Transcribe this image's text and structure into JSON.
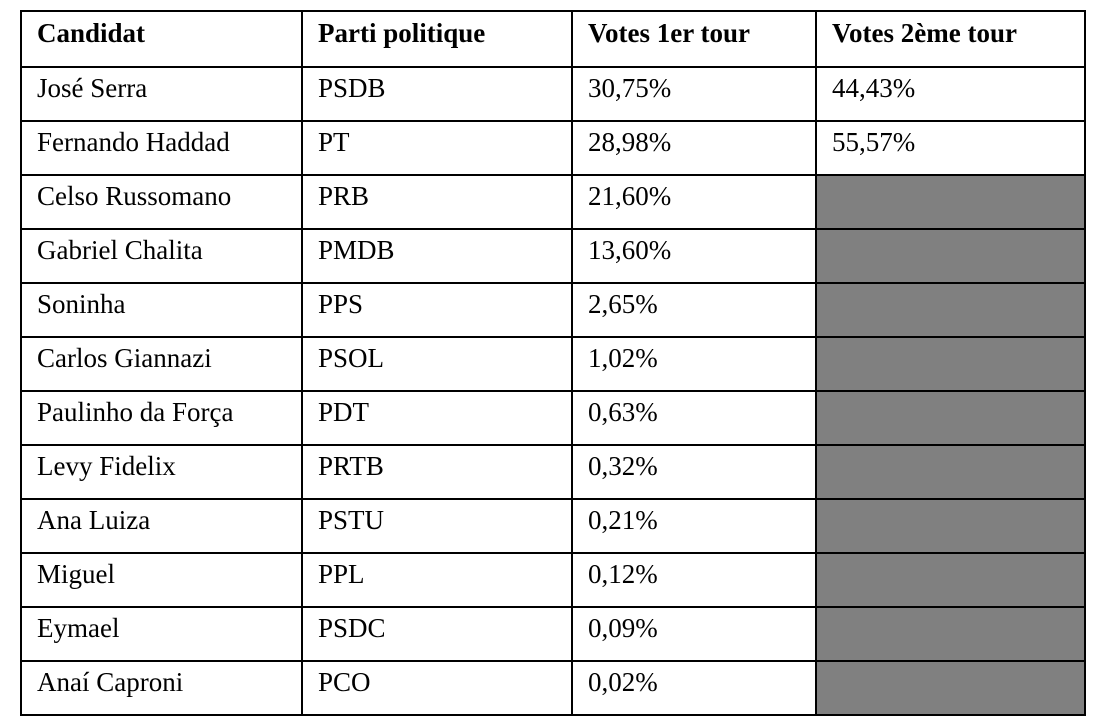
{
  "headers": {
    "candidate": "Candidat",
    "party": "Parti politique",
    "round1": "Votes 1er tour",
    "round2": "Votes 2ème tour"
  },
  "rows": [
    {
      "candidate": "José Serra",
      "party": "PSDB",
      "round1": "30,75%",
      "round2": "44,43%"
    },
    {
      "candidate": "Fernando Haddad",
      "party": "PT",
      "round1": "28,98%",
      "round2": "55,57%"
    },
    {
      "candidate": "Celso Russomano",
      "party": "PRB",
      "round1": "21,60%",
      "round2": ""
    },
    {
      "candidate": "Gabriel Chalita",
      "party": "PMDB",
      "round1": "13,60%",
      "round2": ""
    },
    {
      "candidate": "Soninha",
      "party": "PPS",
      "round1": "2,65%",
      "round2": ""
    },
    {
      "candidate": "Carlos Giannazi",
      "party": "PSOL",
      "round1": "1,02%",
      "round2": ""
    },
    {
      "candidate": "Paulinho da Força",
      "party": "PDT",
      "round1": "0,63%",
      "round2": ""
    },
    {
      "candidate": "Levy Fidelix",
      "party": "PRTB",
      "round1": "0,32%",
      "round2": ""
    },
    {
      "candidate": "Ana Luiza",
      "party": "PSTU",
      "round1": "0,21%",
      "round2": ""
    },
    {
      "candidate": "Miguel",
      "party": "PPL",
      "round1": "0,12%",
      "round2": ""
    },
    {
      "candidate": "Eymael",
      "party": "PSDC",
      "round1": "0,09%",
      "round2": ""
    },
    {
      "candidate": "Anaí Caproni",
      "party": "PCO",
      "round1": "0,02%",
      "round2": ""
    }
  ],
  "colors": {
    "no_second_round_fill": "#808080",
    "border": "#000000"
  }
}
